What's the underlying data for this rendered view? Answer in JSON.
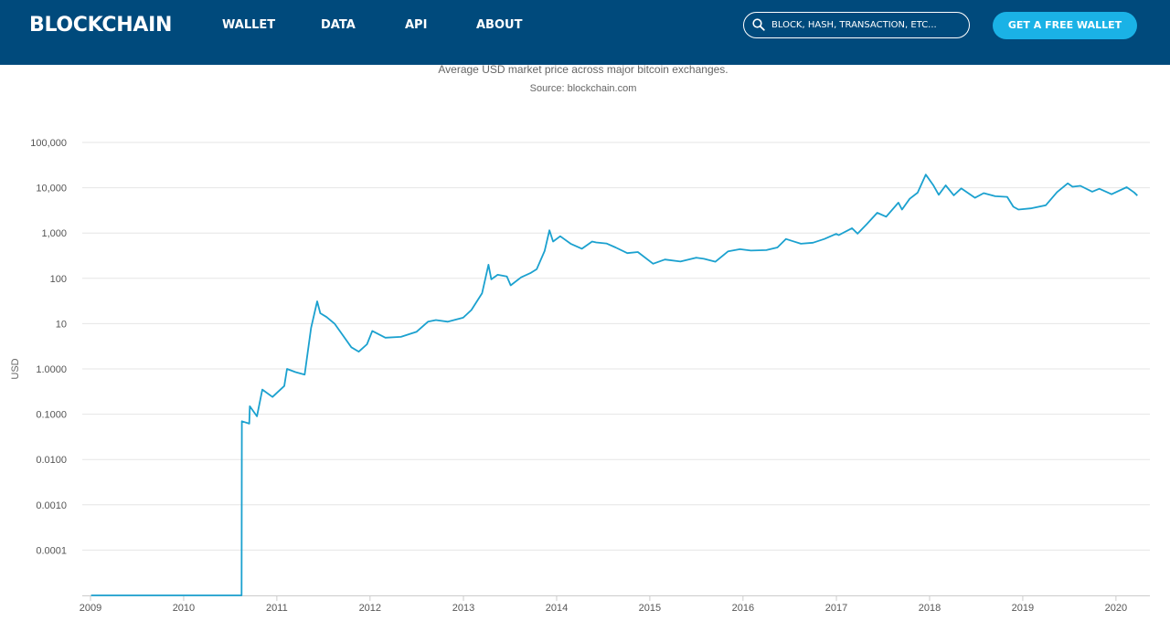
{
  "header": {
    "logo": "BLOCKCHAIN",
    "nav": [
      "WALLET",
      "DATA",
      "API",
      "ABOUT"
    ],
    "search_placeholder": "BLOCK, HASH, TRANSACTION, ETC...",
    "cta_label": "GET A FREE WALLET"
  },
  "colors": {
    "header_bg": "#004a7c",
    "cta_bg": "#1ab2e6",
    "line": "#1ba1cf",
    "grid": "#e6e6e6"
  },
  "chart_data": {
    "type": "line",
    "subtitle": "Average USD market price across major bitcoin exchanges.",
    "source": "Source: blockchain.com",
    "ylabel": "USD",
    "xlabel": "",
    "y_scale": "log",
    "ylim": [
      1e-05,
      100000
    ],
    "y_tick_labels": [
      "100,000",
      "10,000",
      "1,000",
      "100",
      "10",
      "1.0000",
      "0.1000",
      "0.0100",
      "0.0010",
      "0.0001"
    ],
    "xlim": [
      "2009-01-01",
      "2020-03-31"
    ],
    "x_tick_labels": [
      "2009",
      "2010",
      "2011",
      "2012",
      "2013",
      "2014",
      "2015",
      "2016",
      "2017",
      "2018",
      "2019",
      "2020"
    ],
    "grid": true,
    "series": [
      {
        "x": [
          "2009-01-03",
          "2010-08-16",
          "2010-08-17",
          "2010-09-15",
          "2010-09-17",
          "2010-10-15",
          "2010-11-05",
          "2010-12-15",
          "2011-01-30",
          "2011-02-10",
          "2011-03-15",
          "2011-04-20",
          "2011-05-15",
          "2011-06-08",
          "2011-06-20",
          "2011-07-15",
          "2011-08-15",
          "2011-10-20",
          "2011-11-18",
          "2011-12-20",
          "2012-01-10",
          "2012-03-01",
          "2012-05-01",
          "2012-07-01",
          "2012-08-15",
          "2012-09-15",
          "2012-11-01",
          "2012-12-31",
          "2013-02-01",
          "2013-03-15",
          "2013-04-09",
          "2013-04-20",
          "2013-05-15",
          "2013-06-20",
          "2013-07-05",
          "2013-08-15",
          "2013-09-20",
          "2013-10-15",
          "2013-11-15",
          "2013-12-04",
          "2013-12-18",
          "2014-01-15",
          "2014-02-25",
          "2014-04-10",
          "2014-05-20",
          "2014-06-05",
          "2014-07-15",
          "2014-08-20",
          "2014-10-05",
          "2014-11-15",
          "2015-01-14",
          "2015-03-01",
          "2015-05-01",
          "2015-07-01",
          "2015-08-01",
          "2015-09-15",
          "2015-11-04",
          "2015-12-20",
          "2016-02-01",
          "2016-04-01",
          "2016-05-15",
          "2016-06-17",
          "2016-07-15",
          "2016-08-15",
          "2016-10-01",
          "2016-11-15",
          "2016-12-31",
          "2017-01-10",
          "2017-03-03",
          "2017-03-25",
          "2017-05-01",
          "2017-06-10",
          "2017-07-15",
          "2017-09-01",
          "2017-09-15",
          "2017-10-15",
          "2017-11-15",
          "2017-12-17",
          "2018-01-15",
          "2018-02-06",
          "2018-03-05",
          "2018-04-06",
          "2018-05-05",
          "2018-06-28",
          "2018-08-01",
          "2018-09-15",
          "2018-11-01",
          "2018-11-25",
          "2018-12-15",
          "2019-02-01",
          "2019-04-01",
          "2019-05-15",
          "2019-06-26",
          "2019-07-15",
          "2019-08-15",
          "2019-09-30",
          "2019-10-28",
          "2019-12-15",
          "2020-02-12",
          "2020-03-12",
          "2020-03-25"
        ],
        "values": [
          1e-05,
          1e-05,
          0.07,
          0.062,
          0.15,
          0.09,
          0.35,
          0.24,
          0.42,
          1.0,
          0.85,
          0.75,
          8,
          31,
          17,
          14,
          10,
          3,
          2.4,
          3.5,
          6.9,
          4.9,
          5.1,
          6.6,
          11,
          12,
          11,
          13.5,
          20,
          47,
          200,
          95,
          120,
          110,
          70,
          105,
          130,
          160,
          400,
          1150,
          650,
          850,
          580,
          450,
          650,
          620,
          590,
          480,
          360,
          380,
          210,
          260,
          235,
          285,
          270,
          233,
          395,
          440,
          410,
          420,
          480,
          740,
          660,
          580,
          610,
          740,
          960,
          900,
          1280,
          970,
          1600,
          2800,
          2300,
          4700,
          3300,
          5700,
          7800,
          19500,
          11500,
          7000,
          11300,
          6800,
          9700,
          6000,
          7600,
          6500,
          6300,
          3800,
          3300,
          3500,
          4100,
          8000,
          12500,
          10500,
          11000,
          8200,
          9500,
          7200,
          10300,
          7900,
          6700
        ]
      }
    ]
  }
}
